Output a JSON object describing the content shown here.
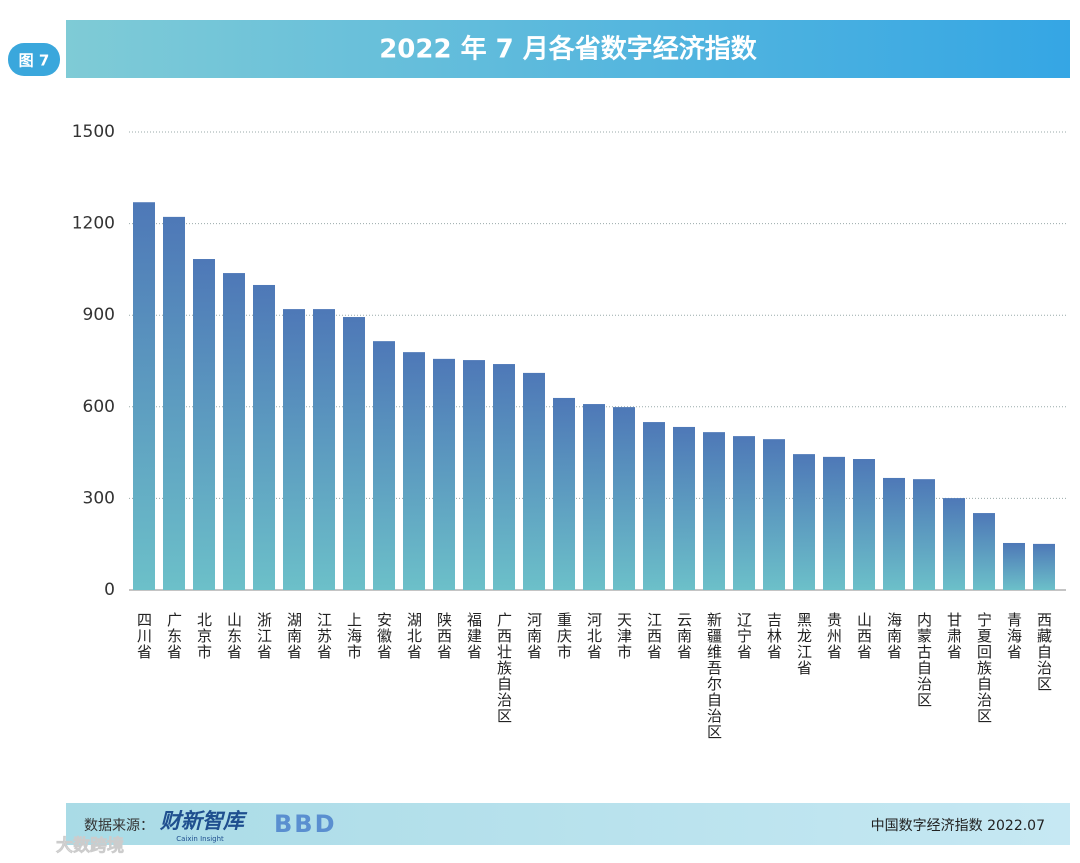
{
  "chart_data": {
    "type": "bar",
    "badge": "图 7",
    "title": "2022 年 7 月各省数字经济指数",
    "categories": [
      "四川省",
      "广东省",
      "北京市",
      "山东省",
      "浙江省",
      "湖南省",
      "江苏省",
      "上海市",
      "安徽省",
      "湖北省",
      "陕西省",
      "福建省",
      "广西壮族自治区",
      "河南省",
      "重庆市",
      "河北省",
      "天津市",
      "江西省",
      "云南省",
      "新疆维吾尔自治区",
      "辽宁省",
      "吉林省",
      "黑龙江省",
      "贵州省",
      "山西省",
      "海南省",
      "内蒙古自治区",
      "甘肃省",
      "宁夏回族自治区",
      "青海省",
      "西藏自治区"
    ],
    "values": [
      1270,
      1222,
      1084,
      1038,
      999,
      920,
      920,
      894,
      815,
      779,
      757,
      753,
      740,
      711,
      629,
      609,
      599,
      550,
      534,
      517,
      504,
      494,
      445,
      436,
      429,
      367,
      363,
      301,
      252,
      154,
      151
    ],
    "color_top": "#4e78b7",
    "color_bottom": "#6cc0c9",
    "ylim": [
      0,
      1500
    ],
    "yticks": [
      0,
      300,
      600,
      900,
      1200,
      1500
    ],
    "grid": true,
    "footer": {
      "source_label": "数据来源：",
      "logo": "财新智库",
      "logo_sub": "Caixin Insight",
      "logo2": "BBD",
      "note": "中国数字经济指数 2022.07",
      "watermark": "大数跨境"
    }
  }
}
